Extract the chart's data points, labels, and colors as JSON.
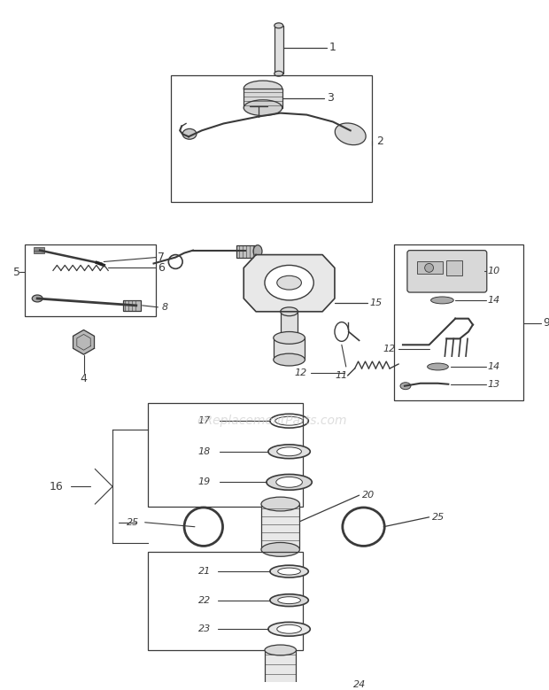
{
  "bg_color": "#ffffff",
  "lc": "#3a3a3a",
  "wm_color": "#c8c8c8",
  "wm_text": "eReplacementParts.com",
  "figw": 6.2,
  "figh": 7.79,
  "dpi": 100
}
